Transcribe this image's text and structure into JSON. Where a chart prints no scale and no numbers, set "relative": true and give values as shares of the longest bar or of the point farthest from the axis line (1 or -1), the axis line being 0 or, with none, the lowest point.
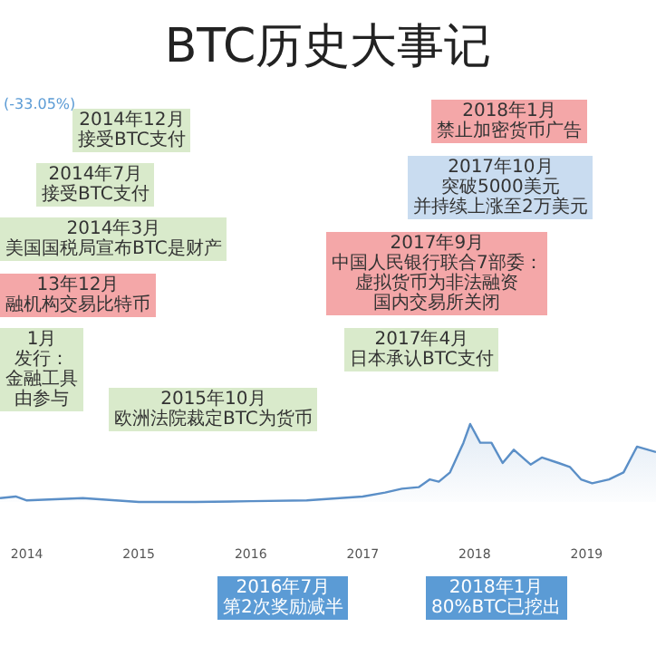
{
  "chart_data": {
    "type": "area",
    "title": "BTC历史大事记",
    "relative": true,
    "color": "#5b8fc7",
    "x": [
      2013.76,
      2013.9,
      2014,
      2014.5,
      2015,
      2015.5,
      2016,
      2016.5,
      2017,
      2017.2,
      2017.35,
      2017.5,
      2017.6,
      2017.68,
      2017.78,
      2017.9,
      2017.96,
      2018.05,
      2018.15,
      2018.25,
      2018.35,
      2018.5,
      2018.6,
      2018.75,
      2018.85,
      2018.95,
      2019.05,
      2019.2,
      2019.33,
      2019.45,
      2019.62
    ],
    "values": [
      0.05,
      0.07,
      0.02,
      0.05,
      0,
      0,
      0.01,
      0.02,
      0.07,
      0.12,
      0.17,
      0.19,
      0.29,
      0.26,
      0.38,
      0.76,
      1,
      0.76,
      0.76,
      0.5,
      0.67,
      0.48,
      0.57,
      0.5,
      0.45,
      0.29,
      0.24,
      0.29,
      0.38,
      0.71,
      0.64
    ],
    "xlim": [
      2013.76,
      2019.62
    ],
    "xticks": [
      2014,
      2015,
      2016,
      2017,
      2018,
      2019
    ],
    "annotations": [
      "(-33.05%)",
      "2014年12月",
      "接受BTC支付",
      "2014年7月",
      "接受BTC支付",
      "2014年3月",
      "美国国税局宣布BTC是财产",
      "13年12月",
      "融机构交易比特币",
      "1月",
      "发行：",
      "金融工具",
      "由参与",
      "2015年10月",
      "欧洲法院裁定BTC为货币",
      "2017年4月",
      "日本承认BTC支付",
      "2017年9月",
      "中国人民银行联合7部委：",
      "虚拟货币为非法融资",
      "国内交易所关闭",
      "2017年10月",
      "突破5000美元",
      "并持续上涨至2万美元",
      "2018年1月",
      "禁止加密货币广告",
      "2016年7月",
      "第2次奖励减半",
      "2018年1月",
      "80%BTC已挖出"
    ]
  }
}
